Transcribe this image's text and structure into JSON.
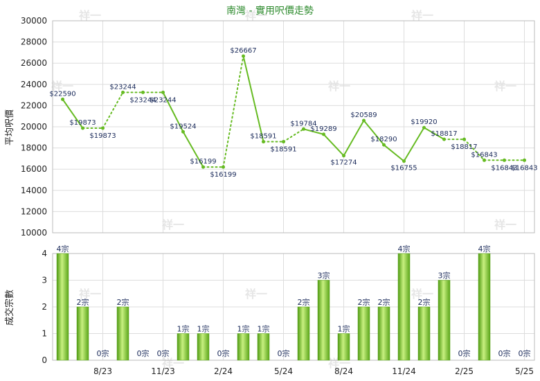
{
  "chart_data": [
    {
      "type": "line",
      "title": "南灣 - 實用呎價走勢",
      "ylabel": "平均呎價",
      "ylim": [
        10000,
        30000
      ],
      "yticks": [
        10000,
        12000,
        14000,
        16000,
        18000,
        20000,
        22000,
        24000,
        26000,
        28000,
        30000
      ],
      "series": [
        {
          "values": [
            22590,
            19873,
            19873,
            23244,
            23244,
            23244,
            19524,
            16199,
            16199,
            26667,
            18591,
            18591,
            19784,
            19289,
            17274,
            20589,
            18290,
            16755,
            19920,
            18817,
            18817,
            16843,
            16843,
            16843
          ],
          "estimated": [
            false,
            false,
            true,
            false,
            true,
            false,
            false,
            false,
            true,
            false,
            false,
            true,
            false,
            false,
            false,
            false,
            false,
            false,
            false,
            false,
            true,
            false,
            true,
            false
          ],
          "labels": [
            "$22590",
            "$19873",
            "$19873",
            "$23244",
            "$23244",
            "$23244",
            "$19524",
            "$16199",
            "$16199",
            "$26667",
            "$18591",
            "$18591",
            "$19784",
            "$19289",
            "$17274",
            "$20589",
            "$18290",
            "$16755",
            "$19920",
            "$18817",
            "$18817",
            "$16843",
            "$16843",
            "$16843"
          ]
        }
      ],
      "colors": {
        "line": "#66bb22",
        "label": "#1a2a5a"
      }
    },
    {
      "type": "bar",
      "ylabel": "成交宗數",
      "ylim": [
        0,
        4
      ],
      "yticks": [
        0,
        1,
        2,
        3,
        4
      ],
      "values": [
        4,
        2,
        0,
        2,
        0,
        0,
        1,
        1,
        0,
        1,
        1,
        0,
        2,
        3,
        1,
        2,
        2,
        4,
        2,
        3,
        0,
        4,
        0,
        0
      ],
      "labels": [
        "4宗",
        "2宗",
        "0宗",
        "2宗",
        "0宗",
        "0宗",
        "1宗",
        "1宗",
        "0宗",
        "1宗",
        "1宗",
        "0宗",
        "2宗",
        "3宗",
        "1宗",
        "2宗",
        "2宗",
        "4宗",
        "2宗",
        "3宗",
        "0宗",
        "4宗",
        "0宗",
        "0宗"
      ],
      "xticks": [
        "8/23",
        "11/23",
        "2/24",
        "5/24",
        "8/24",
        "11/24",
        "2/25",
        "5/25"
      ],
      "colors": {
        "bar_dark": "#5aa51a",
        "bar_light": "#c8f080",
        "label": "#1a2a5a"
      }
    }
  ],
  "watermark": "祥一"
}
